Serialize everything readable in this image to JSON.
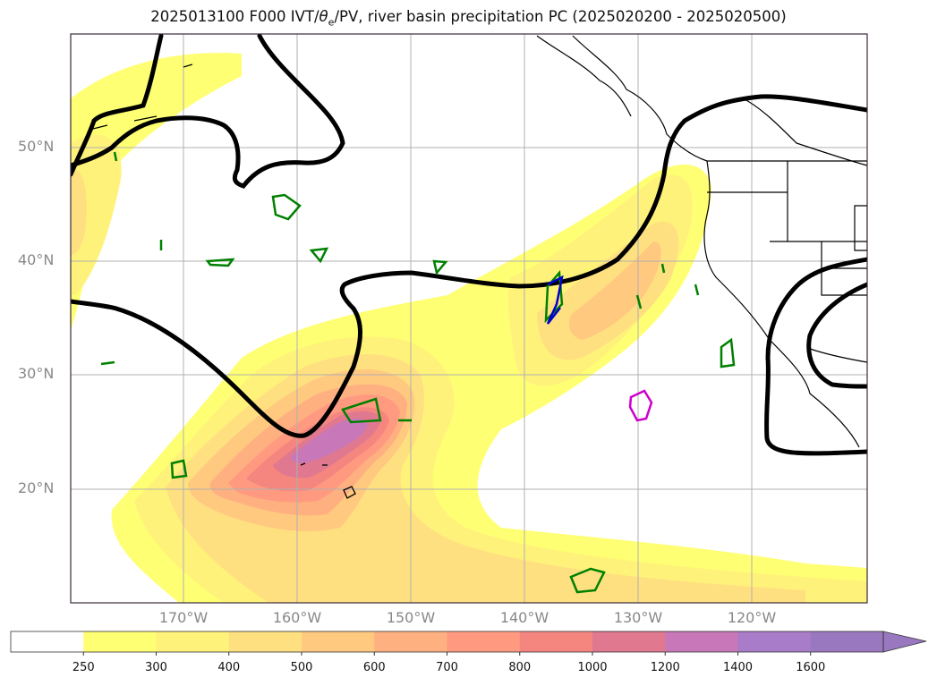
{
  "title": {
    "prefix": "2025013100 F000 IVT/",
    "theta": "θ",
    "theta_sub": "e",
    "suffix": "/PV, river basin precipitation PC (2025020200 - 2025020500)"
  },
  "lat_labels": [
    "50°N",
    "40°N",
    "30°N",
    "20°N"
  ],
  "lon_labels": [
    "170°W",
    "160°W",
    "150°W",
    "140°W",
    "130°W",
    "120°W"
  ],
  "colorbar": {
    "levels": [
      "250",
      "300",
      "400",
      "500",
      "600",
      "700",
      "800",
      "1000",
      "1200",
      "1400",
      "1600"
    ],
    "colors": [
      "#ffffff",
      "#ffff73",
      "#fff27a",
      "#ffe080",
      "#ffc980",
      "#ffb080",
      "#ff9a80",
      "#f5867f",
      "#e07890",
      "#c878b8",
      "#a87cc8",
      "#9a78c0"
    ],
    "extend": "max"
  },
  "contour_colors": {
    "pv": "#000000",
    "theta_e": "#008000",
    "precip_pc": "#0000cc",
    "precip_pc2": "#cc00cc"
  }
}
